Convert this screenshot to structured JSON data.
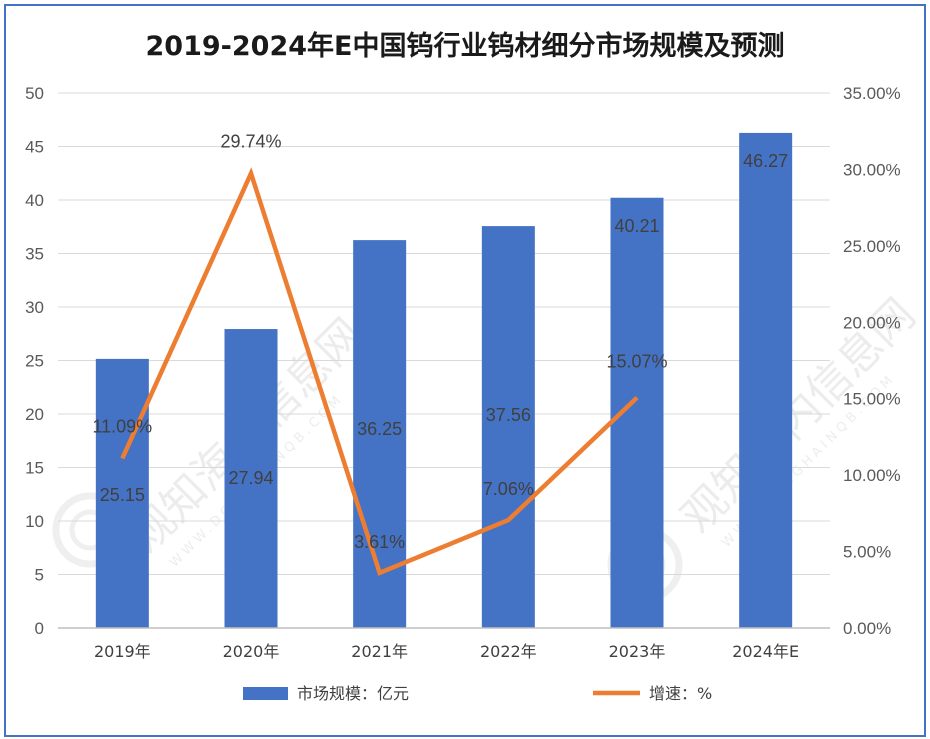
{
  "chart_data": {
    "type": "bar+line",
    "title": "2019-2024年E中国钨行业钨材细分市场规模及预测",
    "categories": [
      "2019年",
      "2020年",
      "2021年",
      "2022年",
      "2023年",
      "2024年E"
    ],
    "y_left": {
      "ylim": [
        0,
        50
      ],
      "ticks": [
        "0",
        "5",
        "10",
        "15",
        "20",
        "25",
        "30",
        "35",
        "40",
        "45",
        "50"
      ]
    },
    "y_right": {
      "ylim": [
        0,
        35
      ],
      "ticks": [
        "0.00%",
        "5.00%",
        "10.00%",
        "15.00%",
        "20.00%",
        "25.00%",
        "30.00%",
        "35.00%"
      ]
    },
    "series": [
      {
        "name": "市场规模：亿元",
        "type": "bar",
        "axis": "left",
        "color": "#4472c4",
        "values": [
          25.15,
          27.94,
          36.25,
          37.56,
          40.21,
          46.27
        ],
        "labels": [
          "25.15",
          "27.94",
          "36.25",
          "37.56",
          "40.21",
          "46.27"
        ]
      },
      {
        "name": "增速：%",
        "type": "line",
        "axis": "right",
        "color": "#ed7d31",
        "values": [
          11.09,
          29.74,
          3.61,
          7.06,
          15.07,
          null
        ],
        "labels": [
          "11.09%",
          "29.74%",
          "3.61%",
          "7.06%",
          "15.07%",
          ""
        ]
      }
    ],
    "grid": true,
    "legend_position": "bottom"
  },
  "watermark": {
    "text": "观知海内信息网",
    "subtext": "WWW.DONGHAINQB.COM"
  }
}
